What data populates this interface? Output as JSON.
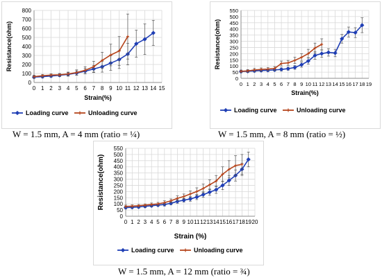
{
  "chart_data": [
    {
      "type": "line",
      "xlabel": "Strain(%)",
      "ylabel": "Resistance(ohm)",
      "xlim": [
        0,
        15
      ],
      "ylim": [
        0,
        800
      ],
      "x_ticks": [
        0,
        1,
        2,
        3,
        4,
        5,
        6,
        7,
        8,
        9,
        10,
        11,
        12,
        13,
        14,
        15
      ],
      "y_ticks": [
        0,
        100,
        200,
        300,
        400,
        500,
        600,
        700,
        800
      ],
      "grid": true,
      "legend_position": "bottom",
      "series": [
        {
          "name": "Loading curve",
          "color": "#1f3eb4",
          "x": [
            0,
            1,
            2,
            3,
            4,
            5,
            6,
            7,
            8,
            9,
            10,
            11,
            12,
            13,
            14
          ],
          "y": [
            60,
            65,
            72,
            80,
            90,
            105,
            125,
            150,
            175,
            215,
            255,
            315,
            430,
            480,
            550
          ],
          "err": [
            15,
            15,
            15,
            15,
            20,
            25,
            30,
            40,
            60,
            80,
            100,
            120,
            150,
            170,
            140
          ]
        },
        {
          "name": "Unloading curve",
          "color": "#b5441b",
          "x": [
            0,
            1,
            2,
            3,
            4,
            5,
            6,
            7,
            8,
            9,
            10,
            11
          ],
          "y": [
            65,
            75,
            82,
            85,
            95,
            110,
            135,
            175,
            245,
            305,
            350,
            510
          ],
          "err": [
            15,
            15,
            15,
            15,
            20,
            30,
            40,
            60,
            90,
            120,
            160,
            250
          ]
        }
      ]
    },
    {
      "type": "line",
      "xlabel": "Strain(%)",
      "ylabel": "Resistance(ohm)",
      "xlim": [
        0,
        19
      ],
      "ylim": [
        0,
        550
      ],
      "x_ticks": [
        0,
        1,
        2,
        3,
        4,
        5,
        6,
        7,
        8,
        9,
        10,
        11,
        12,
        13,
        14,
        15,
        16,
        17,
        18,
        19
      ],
      "y_ticks": [
        0,
        50,
        100,
        150,
        200,
        250,
        300,
        350,
        400,
        450,
        500,
        550
      ],
      "grid": true,
      "legend_position": "bottom",
      "series": [
        {
          "name": "Loading curve",
          "color": "#1f3eb4",
          "x": [
            0,
            1,
            2,
            3,
            4,
            5,
            6,
            7,
            8,
            9,
            10,
            11,
            12,
            13,
            14,
            15,
            16,
            17,
            18
          ],
          "y": [
            55,
            57,
            60,
            63,
            65,
            68,
            72,
            78,
            88,
            110,
            140,
            185,
            200,
            210,
            205,
            320,
            375,
            370,
            430
          ],
          "err": [
            10,
            10,
            10,
            10,
            10,
            10,
            12,
            12,
            15,
            20,
            25,
            30,
            30,
            30,
            30,
            35,
            40,
            40,
            60
          ]
        },
        {
          "name": "Unloading curve",
          "color": "#b5441b",
          "x": [
            0,
            1,
            2,
            3,
            4,
            5,
            6,
            7,
            8,
            9,
            10,
            11,
            12
          ],
          "y": [
            57,
            60,
            68,
            72,
            75,
            80,
            120,
            125,
            145,
            170,
            200,
            245,
            275
          ],
          "err": [
            10,
            10,
            12,
            12,
            12,
            15,
            20,
            20,
            25,
            30,
            35,
            40,
            45
          ]
        }
      ]
    },
    {
      "type": "line",
      "xlabel": "Strain (%)",
      "ylabel": "Resistance(ohm)",
      "xlim": [
        0,
        20
      ],
      "ylim": [
        0,
        550
      ],
      "x_ticks": [
        0,
        1,
        2,
        3,
        4,
        5,
        6,
        7,
        8,
        9,
        10,
        11,
        12,
        13,
        14,
        15,
        16,
        17,
        18,
        19,
        20
      ],
      "y_ticks": [
        0,
        50,
        100,
        150,
        200,
        250,
        300,
        350,
        400,
        450,
        500,
        550
      ],
      "grid": true,
      "legend_position": "bottom",
      "series": [
        {
          "name": "Loading curve",
          "color": "#1f3eb4",
          "x": [
            0,
            1,
            2,
            3,
            4,
            5,
            6,
            7,
            8,
            9,
            10,
            11,
            12,
            13,
            14,
            15,
            16,
            17,
            18,
            19
          ],
          "y": [
            70,
            72,
            75,
            80,
            85,
            90,
            95,
            105,
            120,
            130,
            140,
            155,
            175,
            195,
            215,
            250,
            290,
            330,
            380,
            460
          ],
          "err": [
            10,
            10,
            10,
            10,
            10,
            10,
            12,
            12,
            15,
            15,
            18,
            20,
            22,
            25,
            30,
            35,
            40,
            45,
            50,
            60
          ]
        },
        {
          "name": "Unloading curve",
          "color": "#b5441b",
          "x": [
            0,
            1,
            2,
            3,
            4,
            5,
            6,
            7,
            8,
            9,
            10,
            11,
            12,
            13,
            14,
            15,
            16,
            17,
            18
          ],
          "y": [
            80,
            82,
            85,
            90,
            95,
            100,
            110,
            125,
            145,
            160,
            180,
            200,
            225,
            255,
            285,
            340,
            380,
            410,
            420
          ],
          "err": [
            10,
            10,
            10,
            10,
            12,
            12,
            15,
            15,
            20,
            20,
            25,
            30,
            35,
            40,
            45,
            60,
            70,
            80,
            80
          ]
        }
      ]
    }
  ],
  "captions": [
    "W = 1.5 mm, A = 4 mm (ratio = ¼)",
    "W = 1.5 mm, A = 8 mm (ratio = ½)",
    "W = 1.5 mm, A = 12 mm (ratio = ¾)"
  ]
}
